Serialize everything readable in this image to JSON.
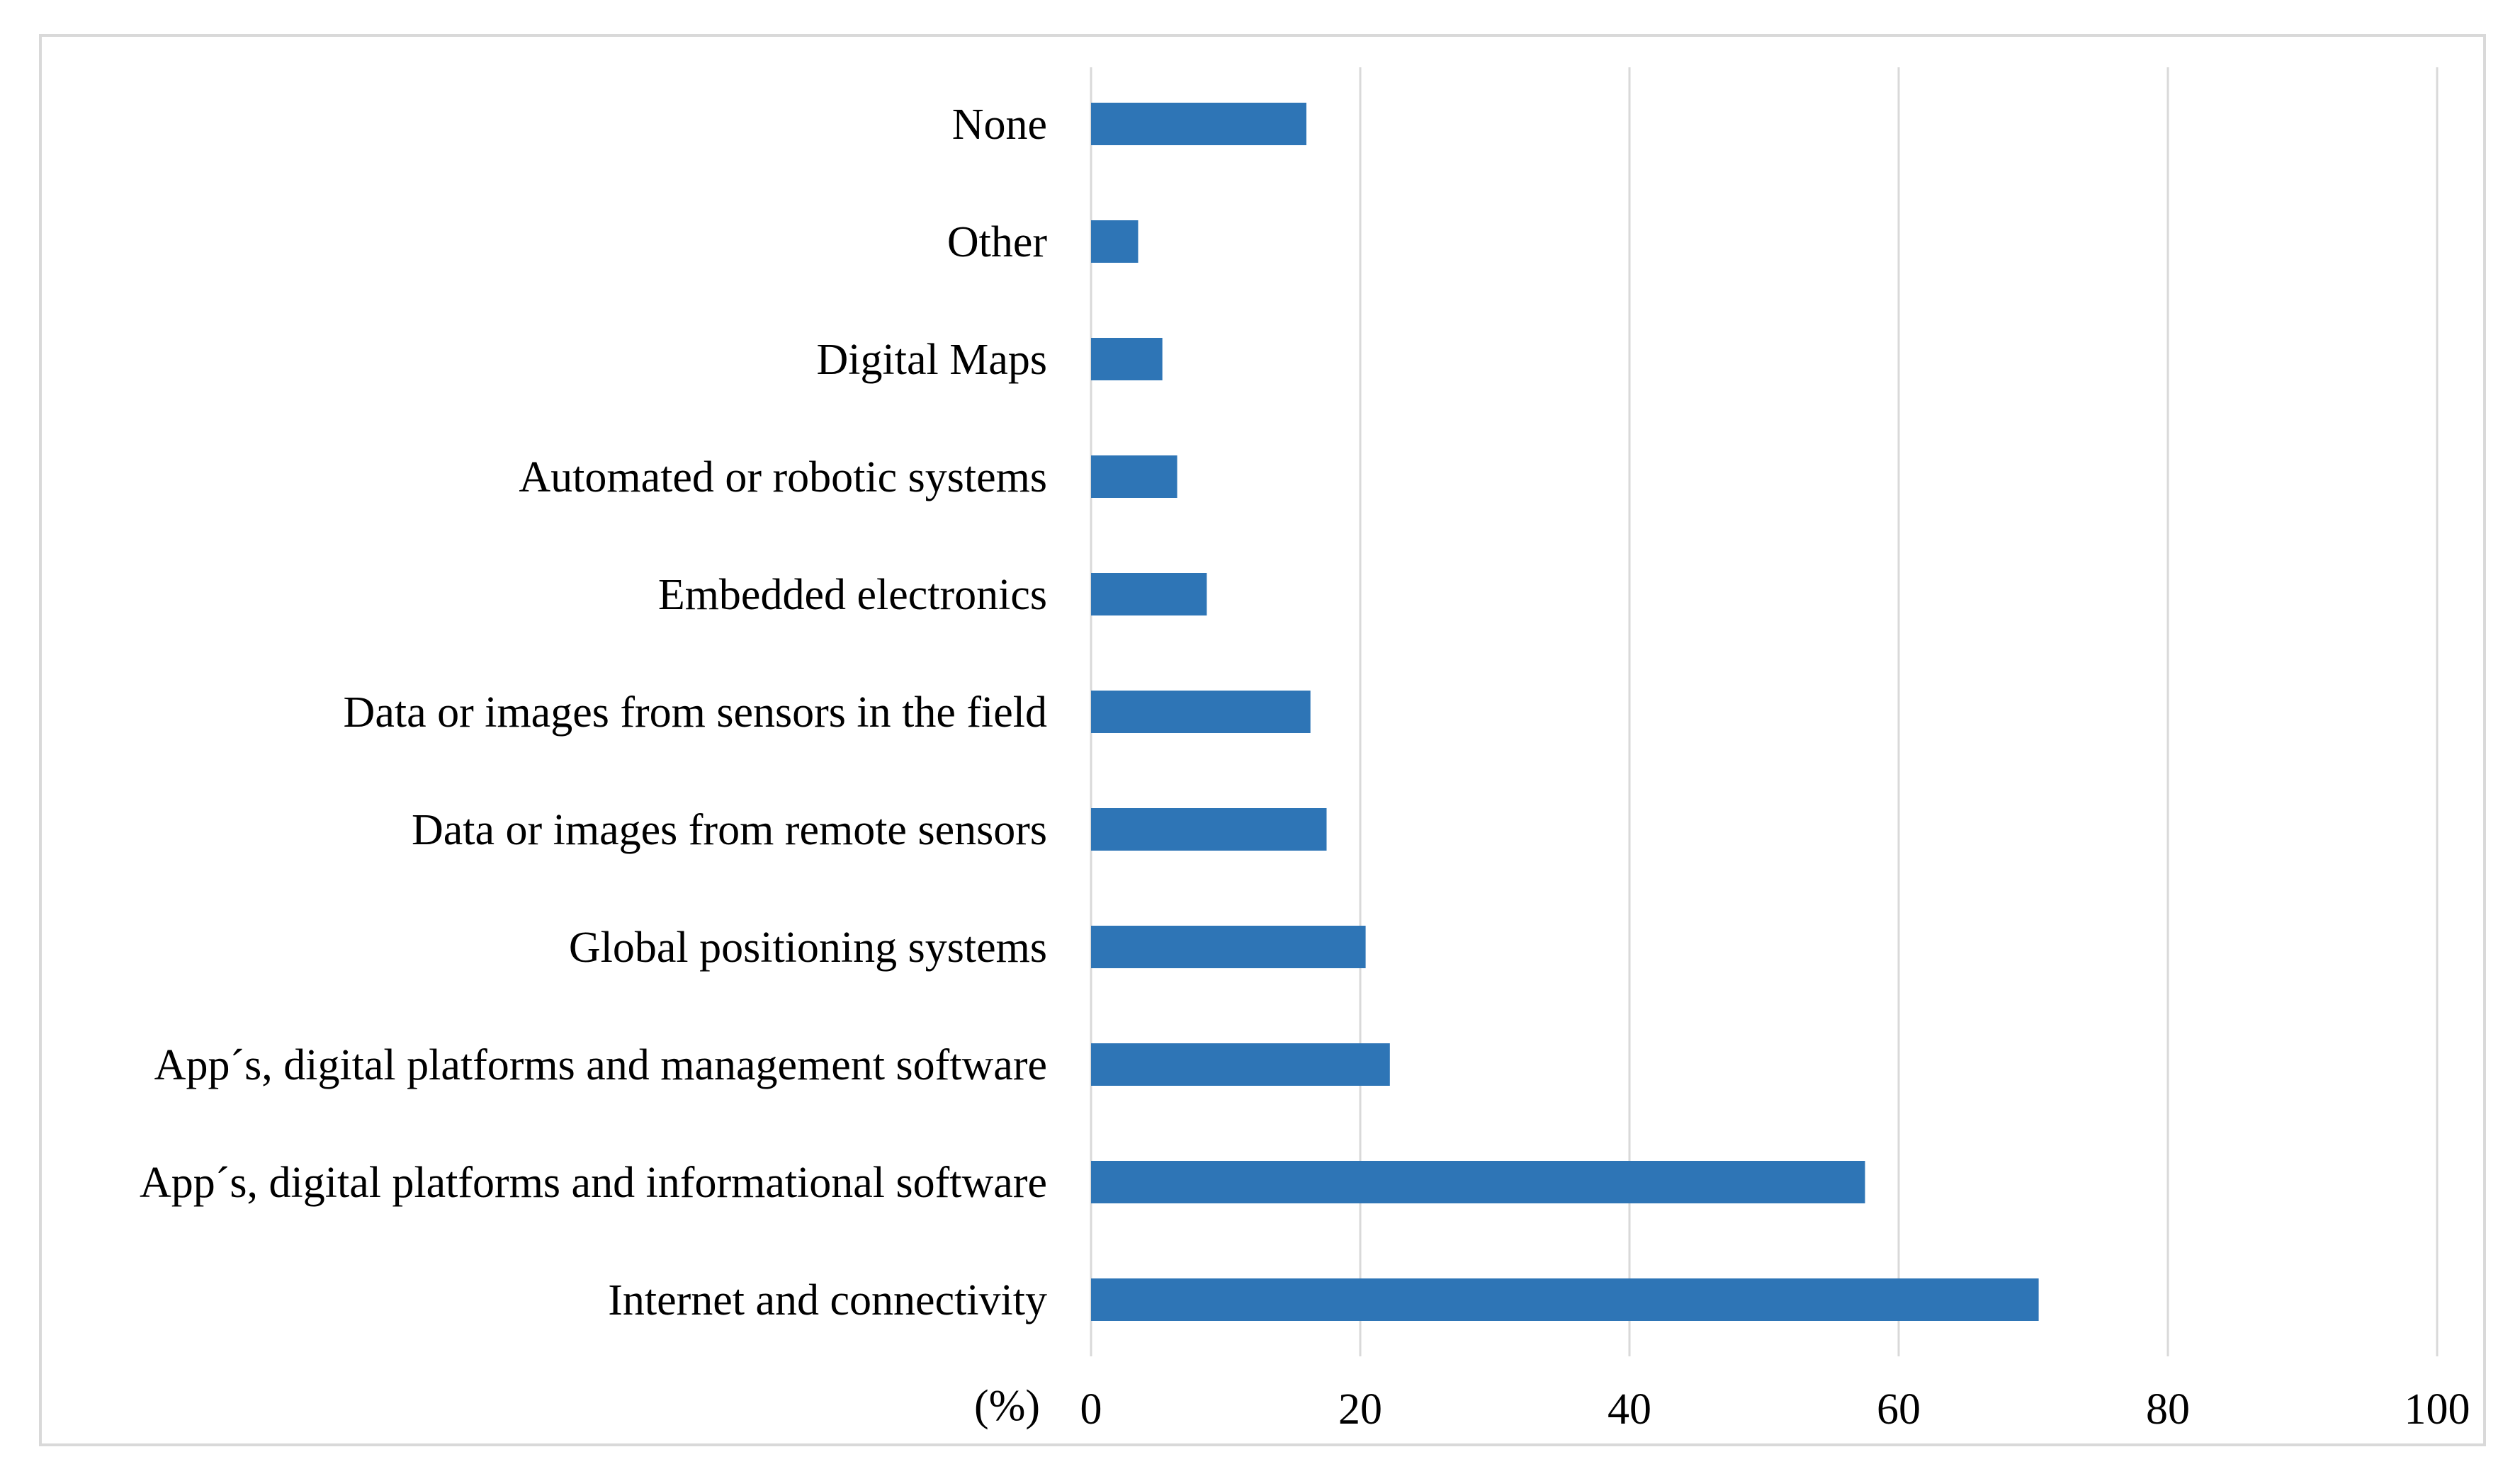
{
  "chart_data": {
    "type": "bar",
    "orientation": "horizontal",
    "title": "",
    "xlabel": "(%)",
    "ylabel": "",
    "xlim": [
      0,
      100
    ],
    "xticks": [
      0,
      20,
      40,
      60,
      80,
      100
    ],
    "grid": true,
    "bar_color": "#2E75B6",
    "categories": [
      "None",
      "Other",
      "Digital Maps",
      "Automated or robotic systems",
      "Embedded electronics",
      "Data or images from sensors in the field",
      "Data or images from remote sensors",
      "Global positioning systems",
      "App´s, digital platforms and management software",
      "App´s, digital platforms and informational software",
      "Internet and connectivity"
    ],
    "values": [
      16,
      3.5,
      5.3,
      6.4,
      8.6,
      16.3,
      17.5,
      20.4,
      22.2,
      57.5,
      70.4
    ]
  }
}
